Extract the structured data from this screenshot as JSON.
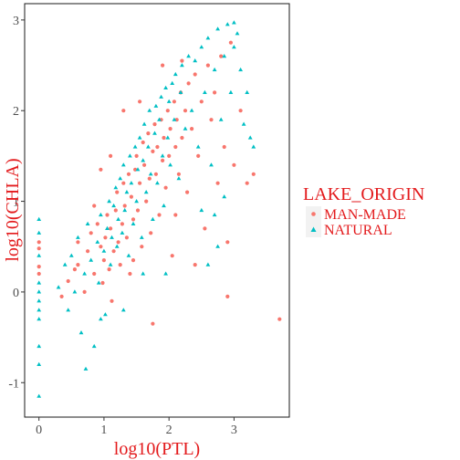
{
  "chart_data": {
    "type": "scatter",
    "title": "",
    "xlabel": "log10(PTL)",
    "ylabel": "log10(CHLA)",
    "xlim": [
      -0.22,
      3.85
    ],
    "ylim": [
      -1.38,
      3.18
    ],
    "x_ticks": [
      0,
      1,
      2,
      3
    ],
    "y_ticks": [
      -1,
      0,
      1,
      2,
      3
    ],
    "x_tick_labels": [
      "0",
      "1",
      "2",
      "3"
    ],
    "y_tick_labels": [
      "-1",
      "0",
      "1",
      "2",
      "3"
    ],
    "grid": false,
    "legend": {
      "title": "LAKE_ORIGIN",
      "placement": "right",
      "entries": [
        {
          "label": "MAN-MADE",
          "shape": "circle",
          "color": "#F8766D"
        },
        {
          "label": "NATURAL",
          "shape": "triangle",
          "color": "#00BFC4"
        }
      ]
    },
    "series": [
      {
        "name": "MAN-MADE",
        "marker": "circle",
        "color": "#F8766D",
        "points": [
          [
            0.0,
            0.55
          ],
          [
            0.0,
            0.48
          ],
          [
            0.0,
            0.28
          ],
          [
            0.0,
            0.2
          ],
          [
            0.35,
            -0.05
          ],
          [
            0.45,
            0.12
          ],
          [
            0.55,
            0.25
          ],
          [
            0.6,
            0.55
          ],
          [
            0.6,
            0.3
          ],
          [
            0.7,
            0.0
          ],
          [
            0.75,
            0.45
          ],
          [
            0.8,
            0.65
          ],
          [
            0.85,
            0.2
          ],
          [
            0.9,
            0.75
          ],
          [
            0.95,
            0.5
          ],
          [
            0.98,
            0.1
          ],
          [
            1.0,
            0.35
          ],
          [
            1.02,
            0.6
          ],
          [
            1.05,
            0.85
          ],
          [
            1.08,
            0.25
          ],
          [
            1.1,
            0.7
          ],
          [
            1.12,
            -0.1
          ],
          [
            1.15,
            0.45
          ],
          [
            1.18,
            0.9
          ],
          [
            1.2,
            1.1
          ],
          [
            1.22,
            0.55
          ],
          [
            1.25,
            0.3
          ],
          [
            1.28,
            0.75
          ],
          [
            1.3,
            1.2
          ],
          [
            1.32,
            0.95
          ],
          [
            1.35,
            0.6
          ],
          [
            1.38,
            1.3
          ],
          [
            1.4,
            0.2
          ],
          [
            1.42,
            1.05
          ],
          [
            1.45,
            0.8
          ],
          [
            1.48,
            1.35
          ],
          [
            1.5,
            1.5
          ],
          [
            1.52,
            0.9
          ],
          [
            1.55,
            1.2
          ],
          [
            1.58,
            0.5
          ],
          [
            1.6,
            1.65
          ],
          [
            1.62,
            1.4
          ],
          [
            1.65,
            1.0
          ],
          [
            1.68,
            1.75
          ],
          [
            1.7,
            1.25
          ],
          [
            1.72,
            0.65
          ],
          [
            1.75,
            1.55
          ],
          [
            1.78,
            1.85
          ],
          [
            1.8,
            1.3
          ],
          [
            1.82,
            1.6
          ],
          [
            1.85,
            0.85
          ],
          [
            1.88,
            1.9
          ],
          [
            1.9,
            1.45
          ],
          [
            1.92,
            1.7
          ],
          [
            1.95,
            1.15
          ],
          [
            1.98,
            2.0
          ],
          [
            2.0,
            1.5
          ],
          [
            2.02,
            1.8
          ],
          [
            2.05,
            0.4
          ],
          [
            2.08,
            2.1
          ],
          [
            2.1,
            1.6
          ],
          [
            2.12,
            1.9
          ],
          [
            2.15,
            1.3
          ],
          [
            2.18,
            2.2
          ],
          [
            2.2,
            1.7
          ],
          [
            2.25,
            2.0
          ],
          [
            2.28,
            1.1
          ],
          [
            2.3,
            2.3
          ],
          [
            2.35,
            1.8
          ],
          [
            2.4,
            2.4
          ],
          [
            2.45,
            1.5
          ],
          [
            2.5,
            2.1
          ],
          [
            2.55,
            0.7
          ],
          [
            2.6,
            2.5
          ],
          [
            2.65,
            1.9
          ],
          [
            2.7,
            2.2
          ],
          [
            2.75,
            1.2
          ],
          [
            2.8,
            2.6
          ],
          [
            2.85,
            1.6
          ],
          [
            2.9,
            0.55
          ],
          [
            2.95,
            2.75
          ],
          [
            3.0,
            1.4
          ],
          [
            3.1,
            2.0
          ],
          [
            3.2,
            1.2
          ],
          [
            3.3,
            1.3
          ],
          [
            3.7,
            -0.3
          ],
          [
            1.3,
            2.0
          ],
          [
            0.95,
            1.35
          ],
          [
            0.85,
            0.95
          ],
          [
            1.45,
            0.35
          ],
          [
            1.75,
            -0.35
          ],
          [
            2.1,
            0.85
          ],
          [
            2.9,
            -0.05
          ],
          [
            1.9,
            2.5
          ],
          [
            2.2,
            2.55
          ],
          [
            1.55,
            2.1
          ],
          [
            2.4,
            0.3
          ],
          [
            1.1,
            1.5
          ]
        ]
      },
      {
        "name": "NATURAL",
        "marker": "triangle",
        "color": "#00BFC4",
        "points": [
          [
            0.0,
            0.8
          ],
          [
            0.0,
            0.65
          ],
          [
            0.0,
            0.4
          ],
          [
            0.0,
            0.1
          ],
          [
            0.0,
            0.0
          ],
          [
            0.0,
            -0.1
          ],
          [
            0.0,
            -0.2
          ],
          [
            0.0,
            -0.3
          ],
          [
            0.0,
            -0.6
          ],
          [
            0.0,
            -0.8
          ],
          [
            0.0,
            -1.15
          ],
          [
            0.3,
            0.05
          ],
          [
            0.4,
            0.3
          ],
          [
            0.45,
            -0.2
          ],
          [
            0.5,
            0.4
          ],
          [
            0.55,
            0.0
          ],
          [
            0.6,
            0.6
          ],
          [
            0.65,
            -0.45
          ],
          [
            0.7,
            0.2
          ],
          [
            0.72,
            -0.85
          ],
          [
            0.75,
            0.75
          ],
          [
            0.8,
            0.35
          ],
          [
            0.85,
            -0.6
          ],
          [
            0.9,
            0.55
          ],
          [
            0.92,
            0.1
          ],
          [
            0.95,
            0.85
          ],
          [
            1.0,
            0.45
          ],
          [
            1.02,
            -0.25
          ],
          [
            1.05,
            0.7
          ],
          [
            1.08,
            1.0
          ],
          [
            1.1,
            0.3
          ],
          [
            1.12,
            0.6
          ],
          [
            1.15,
            0.95
          ],
          [
            1.18,
            1.15
          ],
          [
            1.2,
            0.5
          ],
          [
            1.22,
            0.8
          ],
          [
            1.25,
            1.25
          ],
          [
            1.28,
            0.65
          ],
          [
            1.3,
            1.4
          ],
          [
            1.32,
            0.9
          ],
          [
            1.35,
            1.1
          ],
          [
            1.38,
            0.4
          ],
          [
            1.4,
            1.5
          ],
          [
            1.42,
            1.2
          ],
          [
            1.45,
            0.75
          ],
          [
            1.48,
            1.6
          ],
          [
            1.5,
            1.0
          ],
          [
            1.52,
            1.35
          ],
          [
            1.55,
            1.7
          ],
          [
            1.58,
            0.6
          ],
          [
            1.6,
            1.45
          ],
          [
            1.62,
            1.85
          ],
          [
            1.65,
            1.1
          ],
          [
            1.68,
            1.6
          ],
          [
            1.7,
            2.0
          ],
          [
            1.72,
            1.3
          ],
          [
            1.75,
            0.8
          ],
          [
            1.78,
            1.75
          ],
          [
            1.8,
            2.05
          ],
          [
            1.82,
            1.2
          ],
          [
            1.85,
            1.9
          ],
          [
            1.88,
            2.15
          ],
          [
            1.9,
            1.5
          ],
          [
            1.92,
            0.95
          ],
          [
            1.95,
            2.25
          ],
          [
            1.98,
            1.7
          ],
          [
            2.0,
            2.1
          ],
          [
            2.02,
            1.4
          ],
          [
            2.05,
            2.3
          ],
          [
            2.08,
            1.9
          ],
          [
            2.1,
            2.4
          ],
          [
            2.15,
            1.25
          ],
          [
            2.18,
            2.2
          ],
          [
            2.2,
            2.5
          ],
          [
            2.25,
            1.8
          ],
          [
            2.3,
            2.6
          ],
          [
            2.35,
            2.0
          ],
          [
            2.4,
            2.55
          ],
          [
            2.45,
            1.6
          ],
          [
            2.5,
            2.7
          ],
          [
            2.55,
            2.2
          ],
          [
            2.6,
            2.8
          ],
          [
            2.65,
            1.4
          ],
          [
            2.7,
            2.45
          ],
          [
            2.75,
            2.9
          ],
          [
            2.8,
            1.9
          ],
          [
            2.85,
            2.6
          ],
          [
            2.9,
            2.95
          ],
          [
            2.95,
            2.2
          ],
          [
            3.0,
            2.97
          ],
          [
            3.05,
            2.85
          ],
          [
            3.1,
            2.45
          ],
          [
            3.15,
            1.85
          ],
          [
            3.2,
            2.2
          ],
          [
            3.25,
            1.7
          ],
          [
            3.3,
            1.6
          ],
          [
            2.5,
            0.9
          ],
          [
            2.7,
            0.85
          ],
          [
            2.85,
            1.05
          ],
          [
            1.95,
            0.2
          ],
          [
            2.6,
            0.3
          ],
          [
            1.3,
            -0.2
          ],
          [
            0.95,
            -0.3
          ],
          [
            2.75,
            0.5
          ],
          [
            3.0,
            2.7
          ],
          [
            1.6,
            0.2
          ]
        ]
      }
    ]
  }
}
